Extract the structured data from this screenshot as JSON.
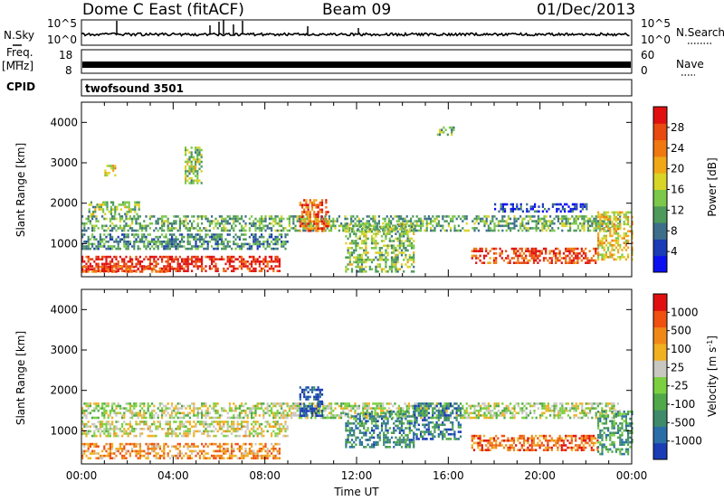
{
  "header": {
    "station": "Dome C East (fitACF)",
    "beam": "Beam 09",
    "date": "01/Dec/2013"
  },
  "nsky_panel": {
    "left_label": "N.Sky",
    "left_ticks": [
      "10^5",
      "10^0"
    ],
    "right_label": "N.Search",
    "right_ticks": [
      "10^5",
      "10^0"
    ]
  },
  "freq_panel": {
    "label_line1": "Freq.",
    "label_line2": "[MHz]",
    "left_ticks": [
      "18",
      "8"
    ],
    "right_label": "Nave",
    "right_ticks": [
      "60",
      "0"
    ]
  },
  "cpid": {
    "label": "CPID",
    "value": "twofsound 3501"
  },
  "chart_data": [
    {
      "type": "heatmap",
      "parameter": "Power",
      "ylabel": "Slant Range [km]",
      "ylim": [
        180,
        4500
      ],
      "yticks": [
        1000,
        2000,
        3000,
        4000
      ],
      "xlim": [
        0,
        24
      ],
      "colorbar": {
        "label": "Power [dB]",
        "ticks": [
          "4",
          "8",
          "12",
          "16",
          "20",
          "24",
          "28"
        ],
        "colors": [
          "#0a10f0",
          "#1a3cb4",
          "#3d6e8a",
          "#4e9a5a",
          "#7cc84a",
          "#d8d428",
          "#f0a818",
          "#f07810",
          "#e84a10",
          "#e01010"
        ]
      },
      "regions": [
        {
          "t0": 0.0,
          "t1": 8.6,
          "r0": 300,
          "r1": 700,
          "level": 0.93
        },
        {
          "t0": 0.0,
          "t1": 4.0,
          "r0": 300,
          "r1": 450,
          "level": 0.8
        },
        {
          "t0": 0.0,
          "t1": 23.5,
          "r0": 1300,
          "r1": 1700,
          "level": 0.38
        },
        {
          "t0": 0.0,
          "t1": 9.0,
          "r0": 900,
          "r1": 1250,
          "level": 0.3
        },
        {
          "t0": 0.3,
          "t1": 2.5,
          "r0": 1750,
          "r1": 2050,
          "level": 0.45
        },
        {
          "t0": 1.0,
          "t1": 1.5,
          "r0": 2700,
          "r1": 2950,
          "level": 0.6
        },
        {
          "t0": 4.5,
          "t1": 5.2,
          "r0": 2500,
          "r1": 3400,
          "level": 0.45
        },
        {
          "t0": 9.5,
          "t1": 10.8,
          "r0": 1300,
          "r1": 2100,
          "level": 0.8
        },
        {
          "t0": 11.5,
          "t1": 14.5,
          "r0": 300,
          "r1": 1500,
          "level": 0.45
        },
        {
          "t0": 15.5,
          "t1": 16.2,
          "r0": 3700,
          "r1": 3900,
          "level": 0.4
        },
        {
          "t0": 17.0,
          "t1": 22.5,
          "r0": 500,
          "r1": 900,
          "level": 0.85
        },
        {
          "t0": 18.0,
          "t1": 22.0,
          "r0": 1800,
          "r1": 2000,
          "level": 0.15
        },
        {
          "t0": 22.5,
          "t1": 24.0,
          "r0": 600,
          "r1": 1800,
          "level": 0.6
        }
      ]
    },
    {
      "type": "heatmap",
      "parameter": "Velocity",
      "ylabel": "Slant Range [km]",
      "ylim": [
        180,
        4500
      ],
      "yticks": [
        1000,
        2000,
        3000,
        4000
      ],
      "xlim": [
        0,
        24
      ],
      "xticks": [
        "00:00",
        "04:00",
        "08:00",
        "12:00",
        "16:00",
        "20:00",
        "00:00"
      ],
      "xlabel": "Time UT",
      "colorbar": {
        "label": "Velocity [m s-1]",
        "ticks": [
          "1000",
          "500",
          "100",
          "25",
          "-25",
          "-100",
          "-500",
          "-1000"
        ],
        "colors": [
          "#1a3cb4",
          "#2a6ea8",
          "#3e8a6a",
          "#50a848",
          "#7cd040",
          "#c8c8c0",
          "#f0b020",
          "#f08818",
          "#f05010",
          "#e01010"
        ]
      },
      "regions": [
        {
          "t0": 0.0,
          "t1": 8.6,
          "r0": 300,
          "r1": 700,
          "level": 0.72
        },
        {
          "t0": 0.0,
          "t1": 23.5,
          "r0": 1300,
          "r1": 1700,
          "level": 0.5
        },
        {
          "t0": 0.0,
          "t1": 9.0,
          "r0": 900,
          "r1": 1250,
          "level": 0.55
        },
        {
          "t0": 9.5,
          "t1": 10.5,
          "r0": 1400,
          "r1": 2100,
          "level": 0.05
        },
        {
          "t0": 11.5,
          "t1": 14.5,
          "r0": 600,
          "r1": 1500,
          "level": 0.25
        },
        {
          "t0": 14.5,
          "t1": 16.5,
          "r0": 800,
          "r1": 1700,
          "level": 0.2
        },
        {
          "t0": 17.0,
          "t1": 22.5,
          "r0": 500,
          "r1": 900,
          "level": 0.82
        },
        {
          "t0": 22.5,
          "t1": 24.0,
          "r0": 400,
          "r1": 1500,
          "level": 0.3
        }
      ]
    }
  ]
}
